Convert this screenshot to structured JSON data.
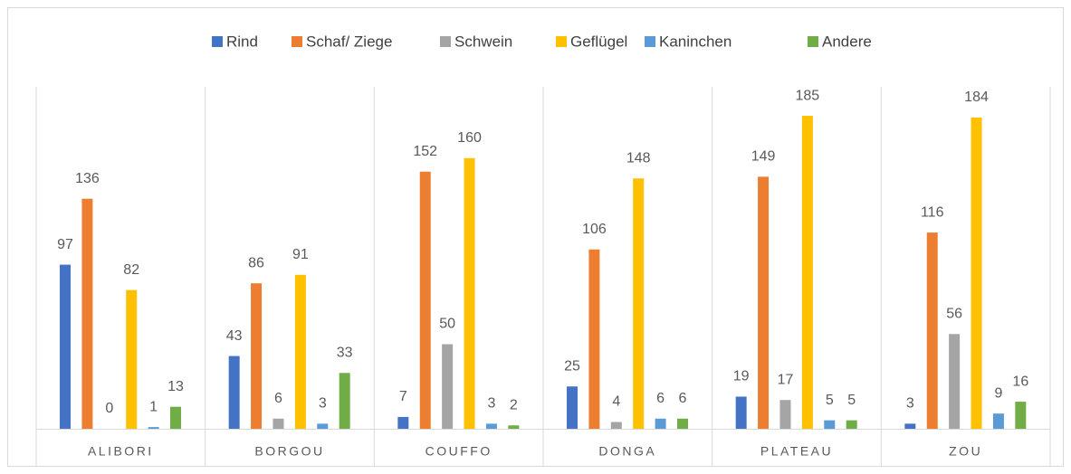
{
  "chart_data": {
    "type": "bar",
    "categories": [
      "ALIBORI",
      "BORGOU",
      "COUFFO",
      "DONGA",
      "PLATEAU",
      "ZOU"
    ],
    "series": [
      {
        "name": "Rind",
        "color": "#4472c4",
        "values": [
          97,
          43,
          7,
          25,
          19,
          3
        ]
      },
      {
        "name": "Schaf/ Ziege",
        "color": "#ed7d31",
        "values": [
          136,
          86,
          152,
          106,
          149,
          116
        ]
      },
      {
        "name": "Schwein",
        "color": "#a5a5a5",
        "values": [
          0,
          6,
          50,
          4,
          17,
          56
        ]
      },
      {
        "name": "Geflügel",
        "color": "#ffc000",
        "values": [
          82,
          91,
          160,
          148,
          185,
          184
        ]
      },
      {
        "name": "Kaninchen",
        "color": "#5b9bd5",
        "values": [
          1,
          3,
          3,
          6,
          5,
          9
        ]
      },
      {
        "name": "Andere",
        "color": "#70ad47",
        "values": [
          13,
          33,
          2,
          6,
          5,
          16
        ]
      }
    ],
    "ylim": [
      0,
      200
    ],
    "legend": "top"
  }
}
